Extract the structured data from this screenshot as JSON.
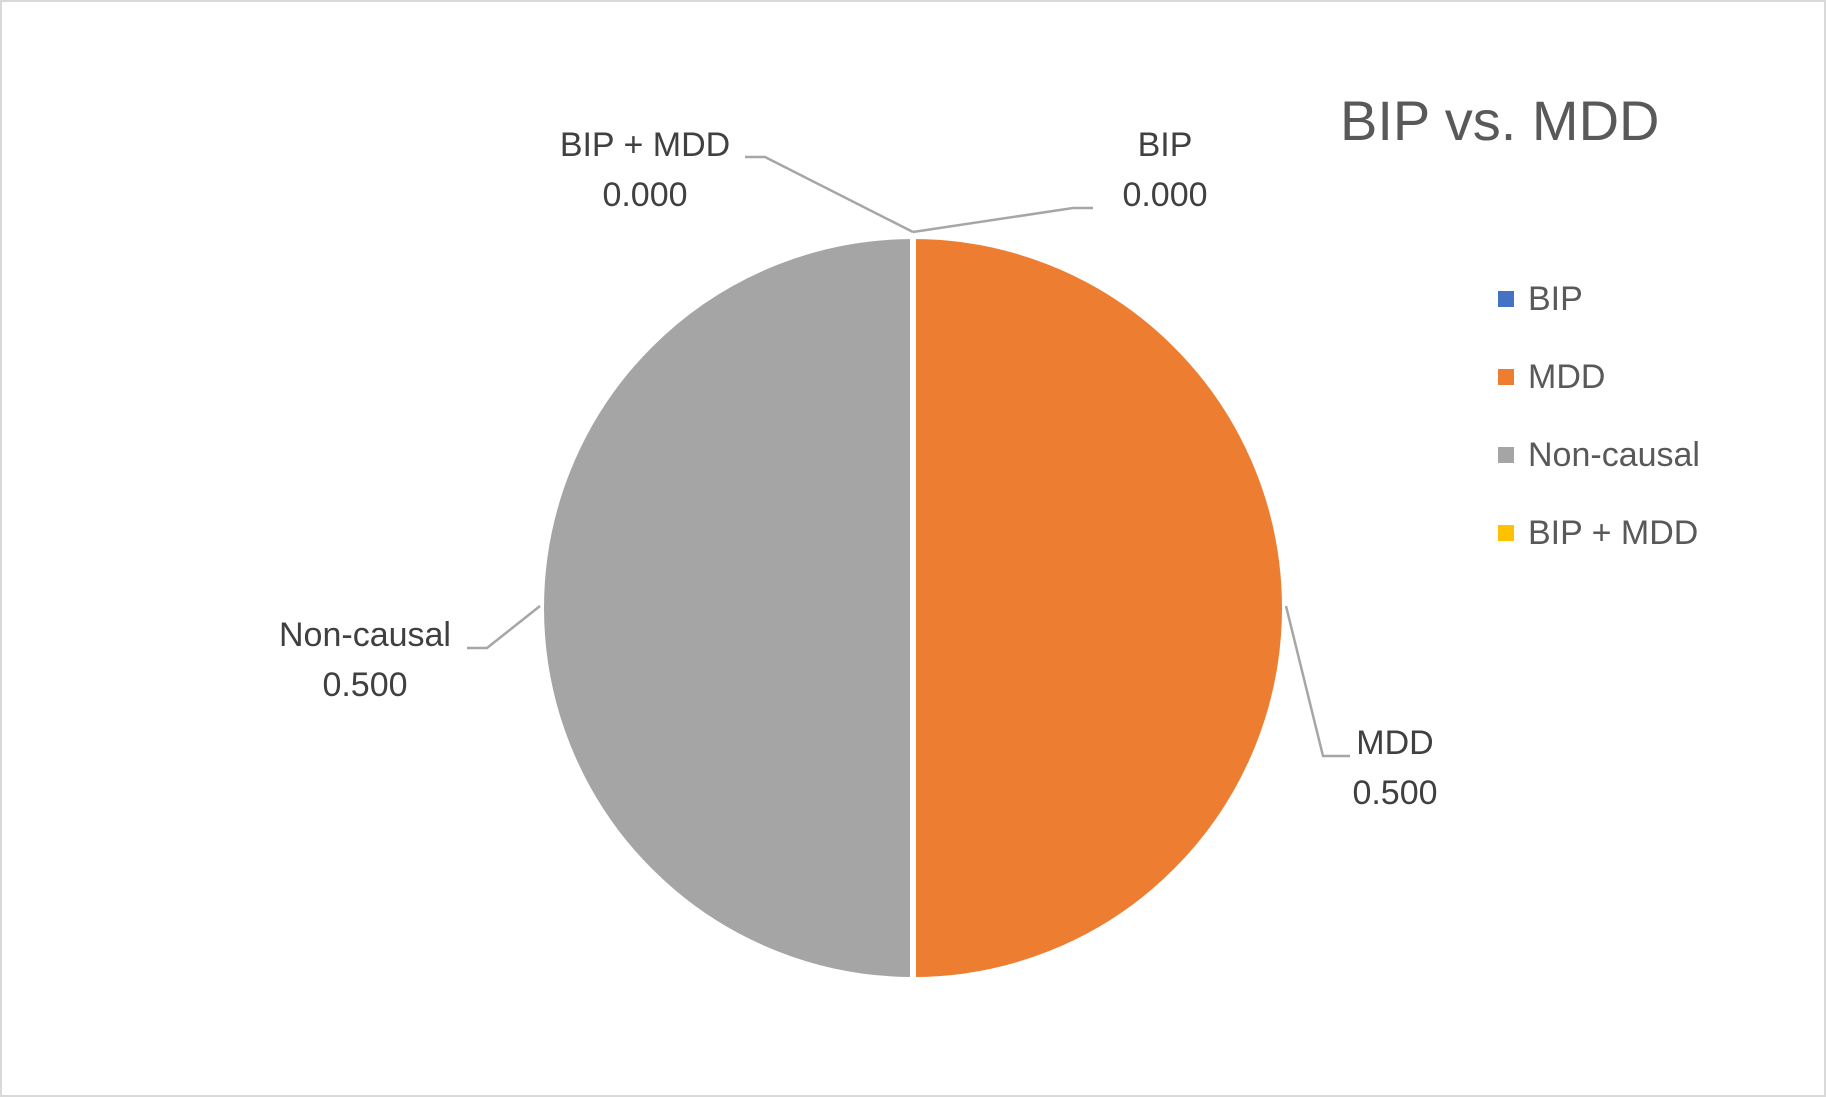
{
  "chart_data": {
    "type": "pie",
    "title": "BIP vs. MDD",
    "categories": [
      "BIP",
      "MDD",
      "Non-causal",
      "BIP + MDD"
    ],
    "values": [
      0.0,
      0.5,
      0.5,
      0.0
    ],
    "value_labels": [
      "0.000",
      "0.500",
      "0.500",
      "0.000"
    ],
    "colors": [
      "#4472C4",
      "#ED7D31",
      "#A5A5A5",
      "#FFC000"
    ],
    "legend_position": "right",
    "legend": [
      {
        "label": "BIP",
        "color": "#4472C4"
      },
      {
        "label": "MDD",
        "color": "#ED7D31"
      },
      {
        "label": "Non-causal",
        "color": "#A5A5A5"
      },
      {
        "label": "BIP + MDD",
        "color": "#FFC000"
      }
    ]
  }
}
